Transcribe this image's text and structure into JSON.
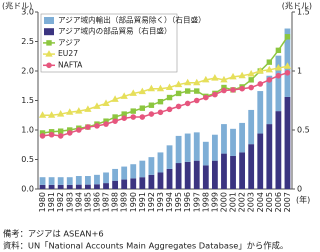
{
  "chart_data": {
    "type": "combo",
    "y_label": "(兆ドル)",
    "y2_label": "(兆ドル)",
    "x_label": "(年)",
    "categories": [
      "1980",
      "1981",
      "1982",
      "1983",
      "1984",
      "1985",
      "1986",
      "1987",
      "1988",
      "1989",
      "1990",
      "1991",
      "1992",
      "1993",
      "1994",
      "1995",
      "1996",
      "1997",
      "1998",
      "1999",
      "2000",
      "2001",
      "2002",
      "2003",
      "2004",
      "2005",
      "2006",
      "2007"
    ],
    "ylim": [
      0,
      3
    ],
    "yticks": [
      {
        "value": 0,
        "label": "0.0"
      },
      0.5,
      {
        "value": 1,
        "label": "1.0"
      },
      1.5,
      {
        "value": 2,
        "label": "2.0"
      },
      2.5,
      {
        "value": 3,
        "label": "3.0"
      }
    ],
    "y2lim": [
      0,
      1.5
    ],
    "y2ticks": [
      0,
      0.5,
      1,
      1.5
    ],
    "legend": "upper left",
    "series": [
      {
        "name": "アジア域内の部品貿易（右目盛）",
        "type": "bar",
        "axis": "y2",
        "color": "#3b3480",
        "values": [
          0.035,
          0.035,
          0.035,
          0.035,
          0.037,
          0.037,
          0.04,
          0.05,
          0.07,
          0.08,
          0.09,
          0.1,
          0.12,
          0.14,
          0.17,
          0.22,
          0.23,
          0.24,
          0.2,
          0.24,
          0.3,
          0.28,
          0.31,
          0.38,
          0.47,
          0.55,
          0.66,
          0.78
        ]
      },
      {
        "name": "アジア域内輸出（部品貿易除く）（右目盛）",
        "type": "bar",
        "axis": "y2",
        "color": "#7eaed6",
        "values": [
          0.065,
          0.065,
          0.065,
          0.065,
          0.073,
          0.073,
          0.08,
          0.09,
          0.1,
          0.11,
          0.12,
          0.14,
          0.15,
          0.17,
          0.2,
          0.23,
          0.24,
          0.24,
          0.2,
          0.22,
          0.25,
          0.23,
          0.25,
          0.29,
          0.36,
          0.41,
          0.47,
          0.58
        ]
      },
      {
        "name": "アジア",
        "type": "line",
        "marker": "square",
        "color": "#8cc63f",
        "values": [
          0.95,
          0.97,
          0.98,
          1.0,
          1.03,
          1.05,
          1.1,
          1.15,
          1.22,
          1.27,
          1.32,
          1.37,
          1.42,
          1.48,
          1.55,
          1.62,
          1.66,
          1.66,
          1.57,
          1.62,
          1.72,
          1.68,
          1.73,
          1.85,
          2.0,
          2.15,
          2.35,
          2.58
        ]
      },
      {
        "name": "EU27",
        "type": "line",
        "marker": "triangle",
        "color": "#e6df5a",
        "values": [
          1.25,
          1.25,
          1.27,
          1.3,
          1.32,
          1.35,
          1.4,
          1.45,
          1.52,
          1.57,
          1.62,
          1.65,
          1.7,
          1.7,
          1.72,
          1.77,
          1.8,
          1.8,
          1.85,
          1.88,
          1.85,
          1.9,
          1.92,
          1.95,
          2.0,
          2.02,
          2.05,
          2.08
        ]
      },
      {
        "name": "NAFTA",
        "type": "line",
        "marker": "circle",
        "color": "#e6567e",
        "values": [
          0.9,
          0.92,
          0.9,
          0.95,
          1.0,
          1.05,
          1.07,
          1.1,
          1.15,
          1.2,
          1.22,
          1.22,
          1.27,
          1.3,
          1.35,
          1.4,
          1.45,
          1.5,
          1.55,
          1.6,
          1.67,
          1.68,
          1.7,
          1.72,
          1.78,
          1.85,
          1.92,
          1.97
        ]
      }
    ],
    "legend_order": [
      1,
      0,
      2,
      3,
      4
    ],
    "notes": [
      "備考：アジアは ASEAN+6",
      "資料：UN「National Accounts Main Aggregates Database」から作成。"
    ]
  }
}
